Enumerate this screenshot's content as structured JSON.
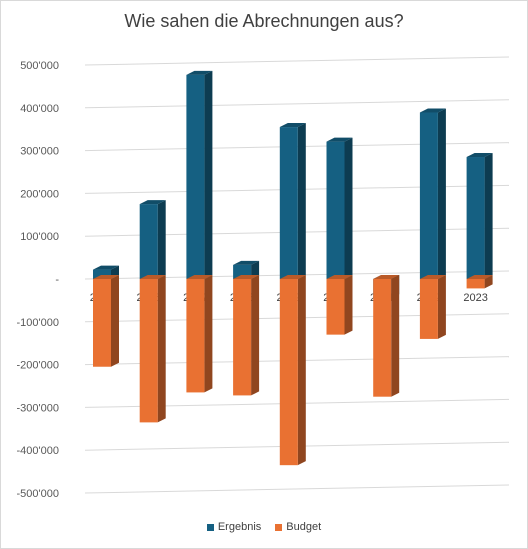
{
  "chart_data": {
    "type": "bar",
    "title": "Wie sahen die Abrechnungen aus?",
    "categories": [
      "2015",
      "2016",
      "2017",
      "2018",
      "2019",
      "2020",
      "2021",
      "2022",
      "2023"
    ],
    "series": [
      {
        "name": "Ergebnis",
        "color": "#156082",
        "values": [
          22000,
          175000,
          477000,
          33000,
          355000,
          321000,
          -45000,
          389000,
          285000
        ]
      },
      {
        "name": "Budget",
        "color": "#E97132",
        "values": [
          -205000,
          -335000,
          -265000,
          -272000,
          -435000,
          -130000,
          -275000,
          -140000,
          -22000
        ]
      }
    ],
    "y_ticks": [
      {
        "value": 500000,
        "label": "500'000"
      },
      {
        "value": 400000,
        "label": "400'000"
      },
      {
        "value": 300000,
        "label": "300'000"
      },
      {
        "value": 200000,
        "label": "200'000"
      },
      {
        "value": 100000,
        "label": "100'000"
      },
      {
        "value": 0,
        "label": "-"
      },
      {
        "value": -100000,
        "label": "-100'000"
      },
      {
        "value": -200000,
        "label": "-200'000"
      },
      {
        "value": -300000,
        "label": "-300'000"
      },
      {
        "value": -400000,
        "label": "-400'000"
      },
      {
        "value": -500000,
        "label": "-500'000"
      }
    ],
    "ylim": [
      -500000,
      500000
    ],
    "grid": true,
    "legend_position": "bottom",
    "style": "3d-stacked-column"
  }
}
